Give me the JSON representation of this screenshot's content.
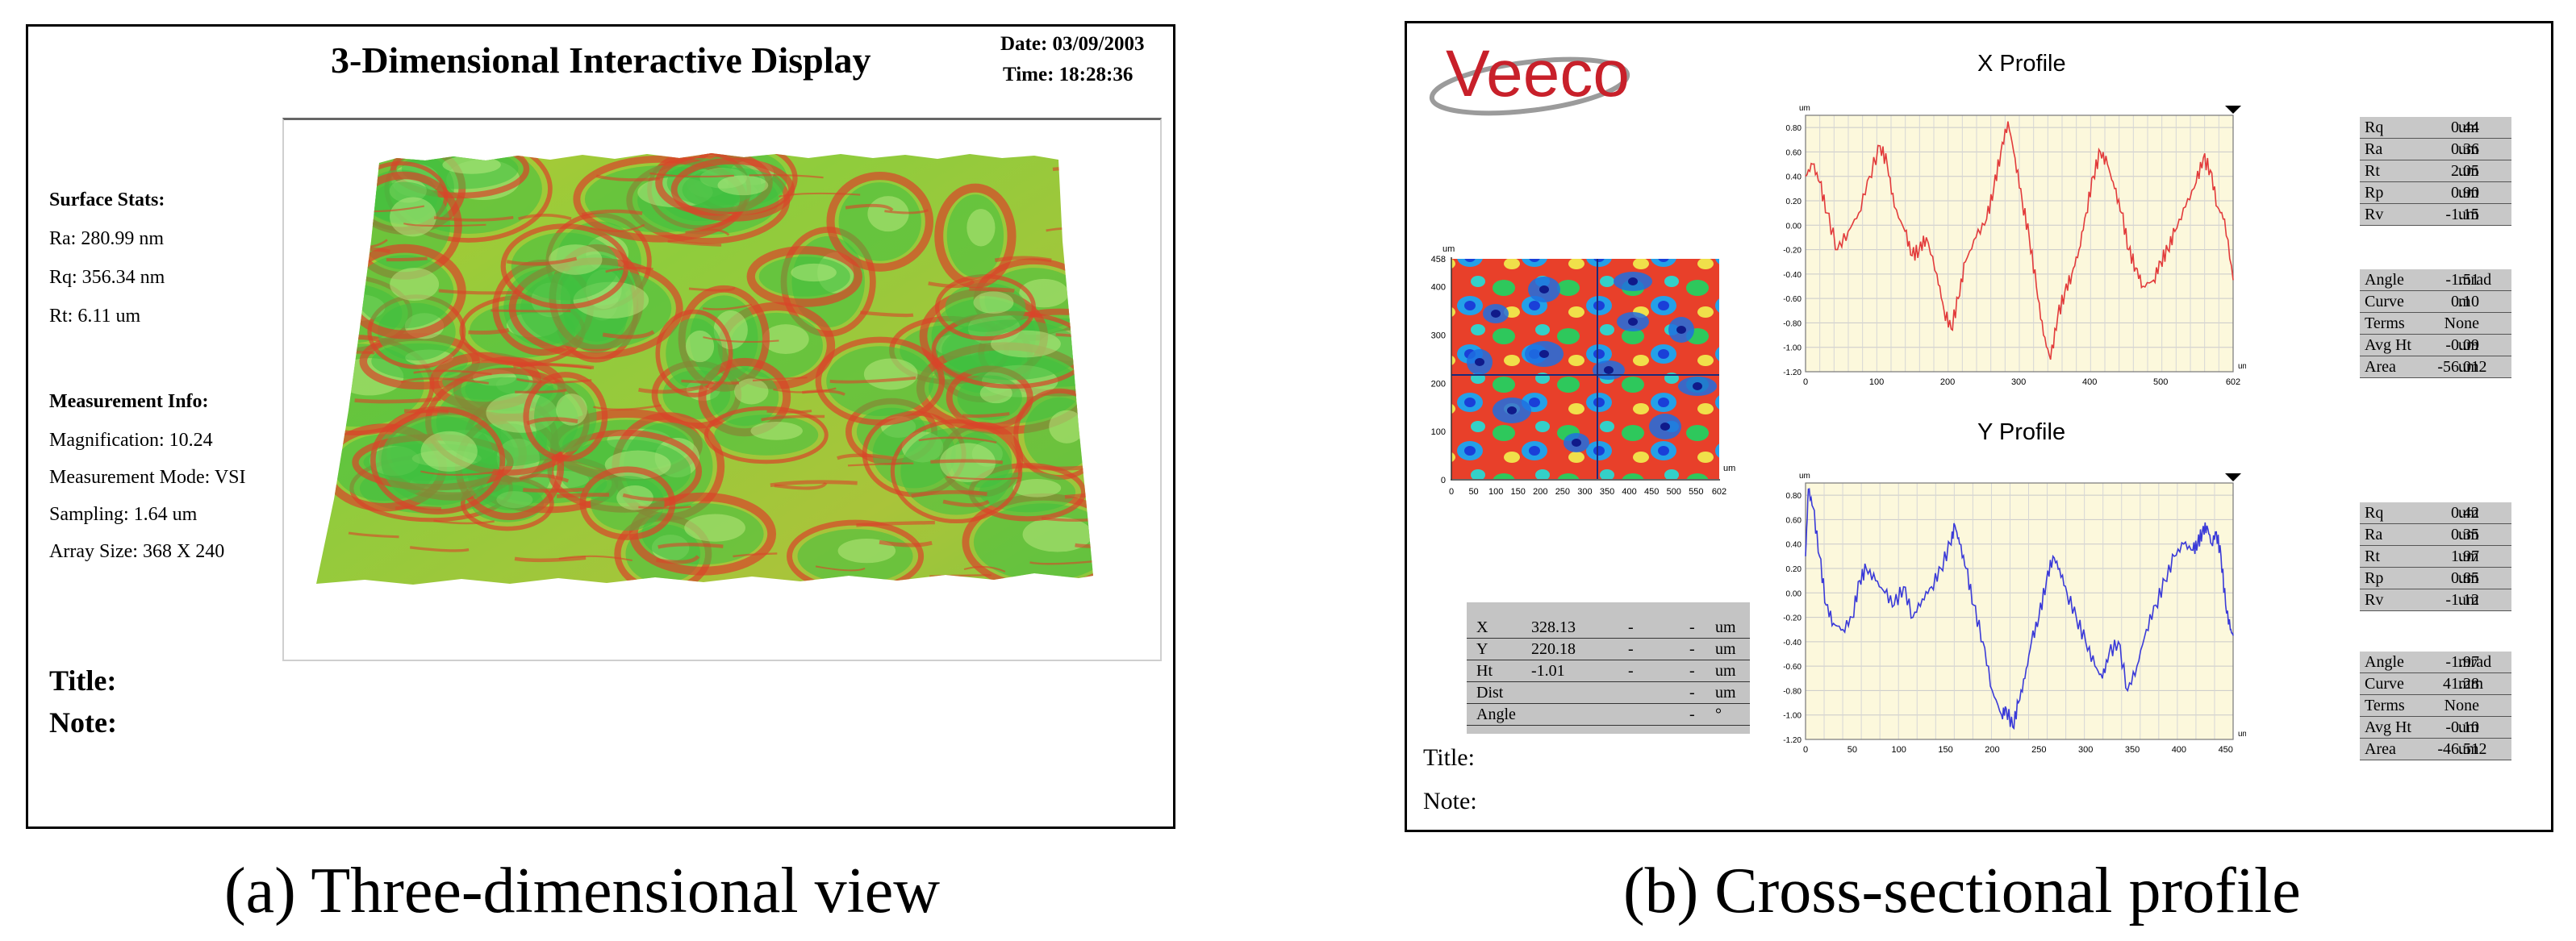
{
  "panel_a": {
    "title": "3-Dimensional Interactive Display",
    "date": "Date: 03/09/2003",
    "time": "Time: 18:28:36",
    "surface_stats_label": "Surface Stats:",
    "ra": "Ra: 280.99 nm",
    "rq": "Rq: 356.34 nm",
    "rt": "Rt: 6.11 um",
    "measurement_info_label": "Measurement Info:",
    "magnification": "Magnification: 10.24",
    "measurement_mode": "Measurement Mode: VSI",
    "sampling": "Sampling: 1.64 um",
    "array_size": "Array Size: 368 X 240",
    "title_label": "Title:",
    "note_label": "Note:",
    "surface_colors": {
      "low": "#3fbf3f",
      "mid": "#9fd43a",
      "high": "#d9452a"
    }
  },
  "panel_b": {
    "logo": "Veeco",
    "logo_color": "#c8202a",
    "x_profile_title": "X Profile",
    "y_profile_title": "Y Profile",
    "x_stats": [
      {
        "k": "Rq",
        "v": "0.44",
        "u": "um"
      },
      {
        "k": "Ra",
        "v": "0.36",
        "u": "um"
      },
      {
        "k": "Rt",
        "v": "2.05",
        "u": "um"
      },
      {
        "k": "Rp",
        "v": "0.90",
        "u": "um"
      },
      {
        "k": "Rv",
        "v": "-1.15",
        "u": "um"
      }
    ],
    "x_fit": [
      {
        "k": "Angle",
        "v": "-1.51",
        "u": "mrad"
      },
      {
        "k": "Curve",
        "v": "0.10",
        "u": "m"
      },
      {
        "k": "Terms",
        "v": "None",
        "u": ""
      },
      {
        "k": "Avg Ht",
        "v": "-0.09",
        "u": "um"
      },
      {
        "k": "Area",
        "v": "-56.01",
        "u": "um2"
      }
    ],
    "y_stats": [
      {
        "k": "Rq",
        "v": "0.42",
        "u": "um"
      },
      {
        "k": "Ra",
        "v": "0.35",
        "u": "um"
      },
      {
        "k": "Rt",
        "v": "1.97",
        "u": "um"
      },
      {
        "k": "Rp",
        "v": "0.85",
        "u": "um"
      },
      {
        "k": "Rv",
        "v": "-1.12",
        "u": "um"
      }
    ],
    "y_fit": [
      {
        "k": "Angle",
        "v": "-1.97",
        "u": "mrad"
      },
      {
        "k": "Curve",
        "v": "41.28",
        "u": "mm"
      },
      {
        "k": "Terms",
        "v": "None",
        "u": ""
      },
      {
        "k": "Avg Ht",
        "v": "-0.10",
        "u": "um"
      },
      {
        "k": "Area",
        "v": "-46.51",
        "u": "um2"
      }
    ],
    "readout": [
      {
        "k": "X",
        "v": "328.13",
        "a": "-",
        "b": "-",
        "u": "um"
      },
      {
        "k": "Y",
        "v": "220.18",
        "a": "-",
        "b": "-",
        "u": "um"
      },
      {
        "k": "Ht",
        "v": "-1.01",
        "a": "-",
        "b": "-",
        "u": "um"
      },
      {
        "k": "Dist",
        "v": "",
        "a": "",
        "b": "-",
        "u": "um"
      },
      {
        "k": "Angle",
        "v": "",
        "a": "",
        "b": "-",
        "u": "°"
      }
    ],
    "title_label": "Title:",
    "note_label": "Note:",
    "map": {
      "unit": "um",
      "x_ticks": [
        "0",
        "50",
        "100",
        "150",
        "200",
        "250",
        "300",
        "350",
        "400",
        "450",
        "500",
        "550",
        "602"
      ],
      "y_ticks": [
        "0",
        "100",
        "200",
        "300",
        "400",
        "458"
      ]
    }
  },
  "captions": {
    "a": "(a) Three-dimensional view",
    "b": "(b) Cross-sectional profile"
  },
  "chart_data": [
    {
      "type": "line",
      "title": "X Profile",
      "xlabel": "um",
      "ylabel": "um",
      "xlim": [
        0,
        602
      ],
      "ylim": [
        -1.2,
        0.9
      ],
      "x_ticks": [
        "0",
        "100",
        "200",
        "300",
        "400",
        "500",
        "602"
      ],
      "y_ticks": [
        "0.80",
        "0.60",
        "0.40",
        "0.20",
        "0.00",
        "-0.20",
        "-0.40",
        "-0.60",
        "-0.80",
        "-1.00",
        "-1.20"
      ],
      "color": "#e23b3b",
      "x": [
        0,
        10,
        20,
        30,
        45,
        60,
        75,
        90,
        105,
        115,
        125,
        140,
        150,
        160,
        170,
        185,
        195,
        205,
        215,
        225,
        240,
        255,
        265,
        275,
        285,
        295,
        305,
        315,
        325,
        335,
        345,
        355,
        365,
        375,
        385,
        395,
        405,
        415,
        425,
        435,
        445,
        455,
        465,
        475,
        490,
        500,
        510,
        520,
        535,
        550,
        560,
        570,
        580,
        590,
        602
      ],
      "y": [
        0.4,
        0.5,
        0.35,
        0.1,
        -0.2,
        -0.05,
        0.1,
        0.4,
        0.65,
        0.5,
        0.15,
        -0.05,
        -0.25,
        -0.2,
        -0.1,
        -0.4,
        -0.7,
        -0.85,
        -0.6,
        -0.3,
        -0.1,
        0.05,
        0.3,
        0.6,
        0.85,
        0.55,
        0.2,
        -0.1,
        -0.5,
        -0.9,
        -1.1,
        -0.75,
        -0.55,
        -0.4,
        -0.2,
        0.1,
        0.4,
        0.6,
        0.5,
        0.3,
        0.1,
        -0.2,
        -0.35,
        -0.5,
        -0.45,
        -0.3,
        -0.2,
        -0.05,
        0.15,
        0.35,
        0.55,
        0.45,
        0.15,
        0.05,
        -0.45
      ]
    },
    {
      "type": "line",
      "title": "Y Profile",
      "xlabel": "um",
      "ylabel": "um",
      "xlim": [
        0,
        458
      ],
      "ylim": [
        -1.2,
        0.9
      ],
      "x_ticks": [
        "0",
        "50",
        "100",
        "150",
        "200",
        "250",
        "300",
        "350",
        "400",
        "450"
      ],
      "y_ticks": [
        "0.80",
        "0.60",
        "0.40",
        "0.20",
        "0.00",
        "-0.20",
        "-0.40",
        "-0.60",
        "-0.80",
        "-1.00",
        "-1.20"
      ],
      "color": "#3a3ad8",
      "x": [
        0,
        3,
        8,
        15,
        22,
        30,
        40,
        50,
        58,
        65,
        75,
        85,
        95,
        105,
        115,
        125,
        135,
        145,
        155,
        160,
        165,
        172,
        180,
        190,
        200,
        210,
        215,
        222,
        228,
        235,
        242,
        250,
        258,
        265,
        272,
        280,
        290,
        300,
        310,
        318,
        325,
        335,
        345,
        355,
        365,
        375,
        385,
        395,
        405,
        415,
        420,
        425,
        430,
        435,
        440,
        445,
        450,
        455,
        458
      ],
      "y": [
        0.3,
        0.85,
        0.7,
        0.3,
        -0.1,
        -0.25,
        -0.3,
        -0.2,
        0.1,
        0.2,
        0.1,
        0.0,
        -0.1,
        0.05,
        -0.2,
        -0.05,
        0.05,
        0.2,
        0.4,
        0.55,
        0.4,
        0.2,
        -0.1,
        -0.4,
        -0.8,
        -1.0,
        -0.95,
        -1.1,
        -0.9,
        -0.7,
        -0.4,
        -0.2,
        0.1,
        0.3,
        0.2,
        0.0,
        -0.2,
        -0.4,
        -0.6,
        -0.7,
        -0.5,
        -0.4,
        -0.8,
        -0.6,
        -0.3,
        -0.1,
        0.1,
        0.3,
        0.4,
        0.35,
        0.4,
        0.5,
        0.55,
        0.4,
        0.5,
        0.3,
        -0.1,
        -0.3,
        -0.35
      ]
    }
  ]
}
